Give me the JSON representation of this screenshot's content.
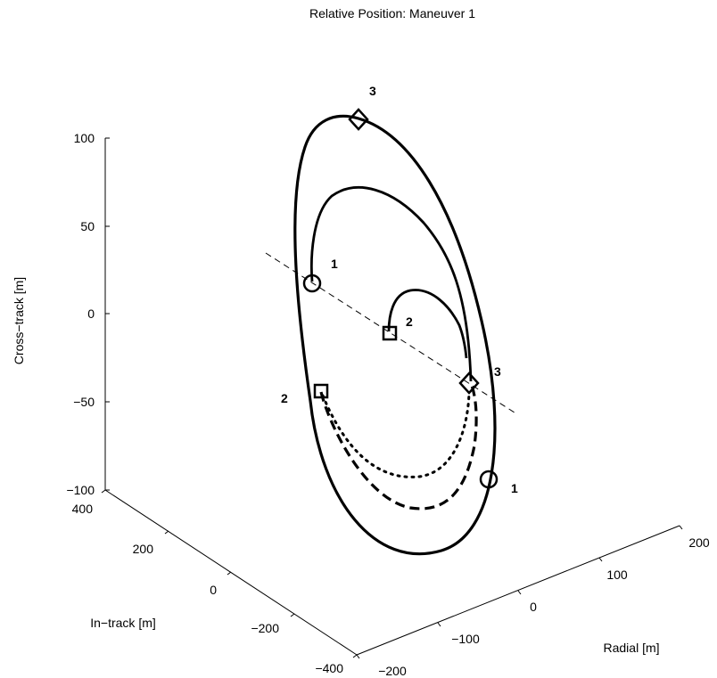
{
  "chart_data": {
    "type": "line",
    "title": "Relative Position: Maneuver 1",
    "axes": {
      "x": {
        "label": "Radial [m]",
        "ticks": [
          "−200",
          "−100",
          "0",
          "100",
          "200"
        ]
      },
      "y": {
        "label": "In−track [m]",
        "ticks": [
          "−400",
          "−200",
          "0",
          "200",
          "400"
        ]
      },
      "z": {
        "label": "Cross−track [m]",
        "ticks": [
          "−100",
          "−50",
          "0",
          "50",
          "100"
        ]
      }
    },
    "view": "3d",
    "grid": false,
    "series": [
      {
        "style": "solid-thick",
        "description": "outer relative orbit"
      },
      {
        "style": "solid",
        "description": "transfer arc 1 to 3"
      },
      {
        "style": "solid",
        "description": "transfer arc 2 to 3"
      },
      {
        "style": "dashed-thick",
        "description": "arc from 2 to 3"
      },
      {
        "style": "dotted",
        "description": "inner arc"
      },
      {
        "style": "dashed-thin",
        "description": "line through origin"
      }
    ],
    "markers": [
      {
        "shape": "circle",
        "label": "1"
      },
      {
        "shape": "circle",
        "label": "1"
      },
      {
        "shape": "square",
        "label": "2"
      },
      {
        "shape": "square",
        "label": "2"
      },
      {
        "shape": "diamond",
        "label": "3"
      },
      {
        "shape": "diamond",
        "label": "3"
      }
    ]
  }
}
